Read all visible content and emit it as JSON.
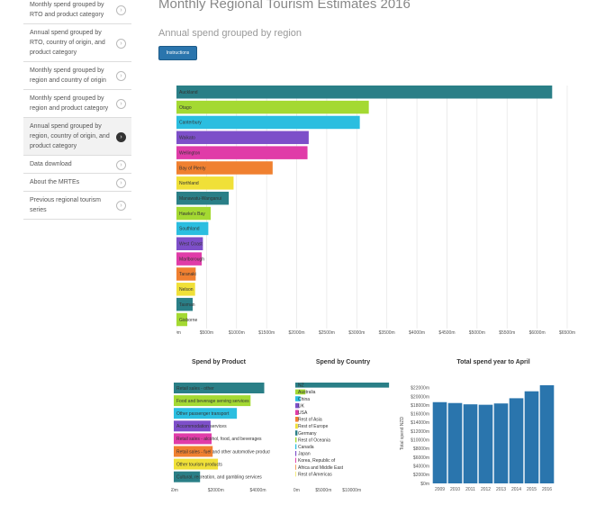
{
  "sidebar": {
    "items": [
      {
        "label": "Monthly spend grouped by RTO and product category",
        "active": false
      },
      {
        "label": "Annual spend grouped by RTO, country of origin, and product category",
        "active": false
      },
      {
        "label": "Monthly spend grouped by region and country of origin",
        "active": false
      },
      {
        "label": "Monthly spend grouped by region and product category",
        "active": false
      },
      {
        "label": "Annual spend grouped by region, country of origin, and product category",
        "active": true
      },
      {
        "label": "Data download",
        "active": false
      },
      {
        "label": "About the MRTEs",
        "active": false
      },
      {
        "label": "Previous regional tourism series",
        "active": false
      }
    ],
    "arrow_icon": "chevron-right-icon"
  },
  "page": {
    "title": "Monthly Regional Tourism Estimates 2016",
    "subtitle": "Annual spend grouped by region",
    "instructions_label": "Instructions"
  },
  "chart_data": [
    {
      "type": "bar",
      "orientation": "horizontal",
      "categories": [
        "Auckland",
        "Otago",
        "Canterbury",
        "Waikato",
        "Wellington",
        "Bay of Plenty",
        "Northland",
        "Manawatu-Wanganui",
        "Hawke's Bay",
        "Southland",
        "West Coast",
        "Marlborough",
        "Taranaki",
        "Nelson",
        "Tasman",
        "Gisborne"
      ],
      "values": [
        6250,
        3200,
        3050,
        2200,
        2180,
        1600,
        950,
        870,
        570,
        530,
        440,
        420,
        320,
        310,
        270,
        180
      ],
      "colors": [
        "#2a7f87",
        "#a4d932",
        "#2bbee0",
        "#7d4fc9",
        "#e03ca8",
        "#f08030",
        "#f0e038",
        "#2a7f87",
        "#a4d932",
        "#2bbee0",
        "#7d4fc9",
        "#e03ca8",
        "#f08030",
        "#f0e038",
        "#2a7f87",
        "#a4d932"
      ],
      "xticks": [
        "$0m",
        "$500m",
        "$1000m",
        "$1500m",
        "$2000m",
        "$2500m",
        "$3000m",
        "$3500m",
        "$4000m",
        "$4500m",
        "$5000m",
        "$5500m",
        "$6000m",
        "$6500m"
      ],
      "xlim": [
        0,
        6500
      ],
      "tick_step": 500,
      "grid": true
    },
    {
      "type": "bar",
      "orientation": "horizontal",
      "title": "Spend by Product",
      "categories": [
        "Retail sales - other",
        "Food and beverage serving services",
        "Other passenger transport",
        "Accommodation services",
        "Retail sales - alcohol, food, and beverages",
        "Retail sales - fuel and other automotive products",
        "Other tourism products",
        "Cultural, recreation, and gambling services"
      ],
      "values": [
        4300,
        3650,
        3000,
        1750,
        1800,
        1850,
        2100,
        1250
      ],
      "colors": [
        "#2a7f87",
        "#a4d932",
        "#2bbee0",
        "#7d4fc9",
        "#e03ca8",
        "#f08030",
        "#f0e038",
        "#2a7f87"
      ],
      "xticks": [
        "$0m",
        "$2000m",
        "$4000m"
      ],
      "xlim": [
        0,
        4450
      ],
      "tick_step": 2000
    },
    {
      "type": "bar",
      "orientation": "horizontal",
      "title": "Spend by Country",
      "categories": [
        "NZ",
        "Australia",
        "China",
        "UK",
        "USA",
        "Rest of Asia",
        "Rest of Europe",
        "Germany",
        "Rest of Oceania",
        "Canada",
        "Japan",
        "Korea, Republic of",
        "Africa and Middle East",
        "Rest of Americas"
      ],
      "values": [
        16600,
        1800,
        900,
        700,
        600,
        550,
        450,
        380,
        220,
        200,
        180,
        150,
        120,
        100
      ],
      "colors": [
        "#2a7f87",
        "#a4d932",
        "#2bbee0",
        "#7d4fc9",
        "#e03ca8",
        "#f08030",
        "#f0e038",
        "#2a7f87",
        "#a4d932",
        "#2bbee0",
        "#7d4fc9",
        "#e03ca8",
        "#f08030",
        "#f0e038"
      ],
      "xticks": [
        "$0m",
        "$5000m",
        "$10000m"
      ],
      "xlim": [
        0,
        16900
      ],
      "tick_step": 5000
    },
    {
      "type": "bar",
      "title": "Total spend year to April",
      "ylabel": "Total spend NZD",
      "categories": [
        "2009",
        "2010",
        "2011",
        "2012",
        "2013",
        "2014",
        "2015",
        "2016"
      ],
      "values": [
        18700,
        18500,
        18200,
        18100,
        18400,
        19600,
        21200,
        22600
      ],
      "color": "#2a75ad",
      "yticks": [
        "$0m",
        "$2000m",
        "$4000m",
        "$6000m",
        "$8000m",
        "$10000m",
        "$12000m",
        "$14000m",
        "$16000m",
        "$18000m",
        "$20000m",
        "$22000m"
      ],
      "ylim": [
        0,
        23000
      ],
      "tick_step": 2000
    }
  ]
}
